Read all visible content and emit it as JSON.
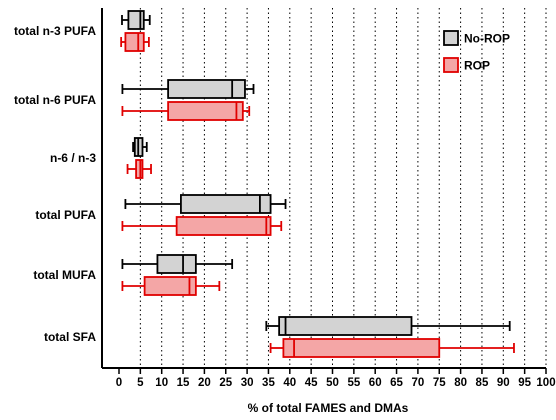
{
  "chart_data": {
    "type": "boxplot",
    "orientation": "horizontal",
    "title": "",
    "xlabel": "% of total FAMES and DMAs",
    "ylabel": "",
    "xlim": [
      0,
      100
    ],
    "xticks": [
      0,
      5,
      10,
      15,
      20,
      25,
      30,
      35,
      40,
      45,
      50,
      55,
      60,
      65,
      70,
      75,
      80,
      85,
      90,
      95,
      100
    ],
    "grid": "vertical dotted at every 5",
    "legend_position": "top-right",
    "categories": [
      "total n-3 PUFA",
      "total n-6 PUFA",
      "n-6 / n-3",
      "total PUFA",
      "total MUFA",
      "total SFA"
    ],
    "series": [
      {
        "name": "No-ROP",
        "color": "#d3d3d3",
        "stroke": "#000000",
        "boxes": [
          {
            "min": 0.7,
            "q1": 2.2,
            "median": 5.0,
            "q3": 5.8,
            "max": 7.2
          },
          {
            "min": 0.8,
            "q1": 11.5,
            "median": 26.5,
            "q3": 29.5,
            "max": 31.5
          },
          {
            "min": 3.3,
            "q1": 3.7,
            "median": 4.5,
            "q3": 5.5,
            "max": 6.5
          },
          {
            "min": 1.5,
            "q1": 14.5,
            "median": 33.0,
            "q3": 35.5,
            "max": 39.0
          },
          {
            "min": 0.8,
            "q1": 9.0,
            "median": 15.0,
            "q3": 18.0,
            "max": 26.5
          },
          {
            "min": 34.5,
            "q1": 37.5,
            "median": 39.0,
            "q3": 68.5,
            "max": 91.5
          }
        ]
      },
      {
        "name": "ROP",
        "color": "#f4a6a6",
        "stroke": "#e00000",
        "boxes": [
          {
            "min": 0.5,
            "q1": 1.5,
            "median": 4.5,
            "q3": 5.8,
            "max": 7.0
          },
          {
            "min": 0.8,
            "q1": 11.5,
            "median": 27.5,
            "q3": 29.0,
            "max": 30.5
          },
          {
            "min": 2.0,
            "q1": 4.0,
            "median": 5.0,
            "q3": 5.5,
            "max": 7.5
          },
          {
            "min": 0.8,
            "q1": 13.5,
            "median": 34.5,
            "q3": 35.5,
            "max": 38.0
          },
          {
            "min": 0.8,
            "q1": 6.0,
            "median": 16.5,
            "q3": 18.0,
            "max": 23.5
          },
          {
            "min": 35.5,
            "q1": 38.5,
            "median": 41.0,
            "q3": 75.0,
            "max": 92.5
          }
        ]
      }
    ]
  }
}
